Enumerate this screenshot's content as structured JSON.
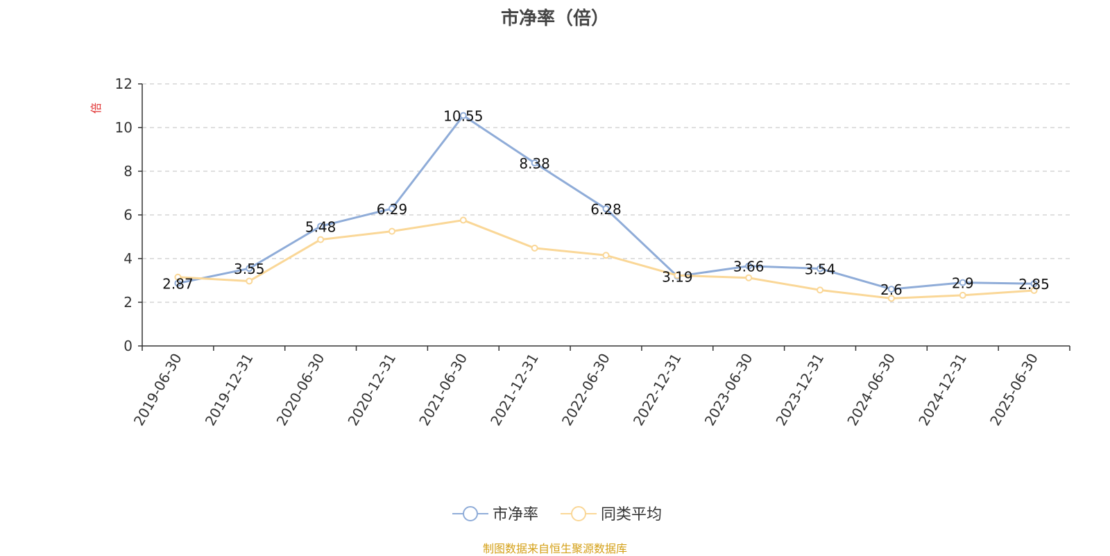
{
  "title": "市净率（倍）",
  "source_note": "制图数据来自恒生聚源数据库",
  "chart_data": {
    "type": "line",
    "title": "市净率（倍）",
    "ylabel": "倍",
    "ylim": [
      0,
      12
    ],
    "yticks": [
      0,
      2,
      4,
      6,
      8,
      10,
      12
    ],
    "grid": true,
    "legend_position": "bottom-center",
    "categories": [
      "2019-06-30",
      "2019-12-31",
      "2020-06-30",
      "2020-12-31",
      "2021-06-30",
      "2021-12-31",
      "2022-06-30",
      "2022-12-31",
      "2023-06-30",
      "2023-12-31",
      "2024-06-30",
      "2024-12-31",
      "2025-06-30"
    ],
    "series": [
      {
        "name": "市净率",
        "color": "#8facd8",
        "values": [
          2.87,
          3.55,
          5.48,
          6.29,
          10.55,
          8.38,
          6.28,
          3.19,
          3.66,
          3.54,
          2.6,
          2.9,
          2.85
        ],
        "labels": [
          "2.87",
          "3.55",
          "5.48",
          "6.29",
          "10.55",
          "8.38",
          "6.28",
          "3.19",
          "3.66",
          "3.54",
          "2.6",
          "2.9",
          "2.85"
        ]
      },
      {
        "name": "同类平均",
        "color": "#fad797",
        "values": [
          3.15,
          2.97,
          4.87,
          5.25,
          5.76,
          4.48,
          4.15,
          3.23,
          3.12,
          2.56,
          2.18,
          2.32,
          2.54
        ]
      }
    ]
  }
}
